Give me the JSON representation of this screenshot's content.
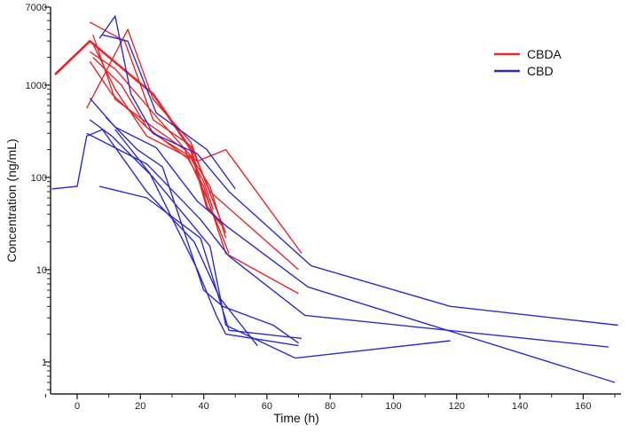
{
  "chart_data": {
    "type": "line",
    "xlabel": "Time (h)",
    "ylabel": "Concentration  (ng/mL)",
    "y_scale": "log",
    "xlim": [
      -12,
      172
    ],
    "ylim": [
      0.45,
      7000
    ],
    "x_ticks": [
      0,
      20,
      40,
      60,
      80,
      100,
      120,
      140,
      160
    ],
    "y_ticks": [
      {
        "value": 1,
        "label": "1"
      },
      {
        "value": 10,
        "label": "10"
      },
      {
        "value": 100,
        "label": "100"
      },
      {
        "value": 1000,
        "label": "1000"
      },
      {
        "value": 7000,
        "label": "7000"
      }
    ],
    "grid": false,
    "legend_position": "top-right",
    "legend": [
      {
        "label": "CBDA",
        "color": "#e8262a"
      },
      {
        "label": "CBD",
        "color": "#2b2bd0"
      }
    ],
    "colors": {
      "cbda": "#e8262a",
      "cbd": "#2b2bd0"
    },
    "series": [
      {
        "group": "cbda",
        "x": [
          -7,
          4,
          24,
          36,
          41,
          46
        ],
        "y": [
          1300,
          3000,
          800,
          200,
          48,
          30
        ]
      },
      {
        "group": "cbda",
        "x": [
          4,
          12,
          24,
          36,
          42,
          47
        ],
        "y": [
          2300,
          1500,
          500,
          170,
          80,
          22
        ]
      },
      {
        "group": "cbda",
        "x": [
          4,
          15,
          24,
          36,
          42,
          70
        ],
        "y": [
          4800,
          3000,
          420,
          220,
          70,
          10
        ]
      },
      {
        "group": "cbda",
        "x": [
          4,
          11,
          24,
          38,
          47,
          71
        ],
        "y": [
          1800,
          800,
          300,
          150,
          200,
          15
        ]
      },
      {
        "group": "cbda",
        "x": [
          3,
          16,
          24,
          36,
          40,
          47
        ],
        "y": [
          560,
          4000,
          700,
          240,
          100,
          25
        ]
      },
      {
        "group": "cbda",
        "x": [
          5,
          12,
          22,
          36,
          40,
          43
        ],
        "y": [
          2800,
          900,
          280,
          160,
          90,
          45
        ]
      },
      {
        "group": "cbda",
        "x": [
          5,
          12,
          24,
          34,
          41,
          48
        ],
        "y": [
          3500,
          700,
          350,
          200,
          60,
          15
        ]
      },
      {
        "group": "cbda",
        "x": [
          5,
          14,
          22,
          35,
          40,
          47,
          70
        ],
        "y": [
          2000,
          1000,
          350,
          160,
          80,
          15,
          5.5
        ]
      },
      {
        "group": "cbd",
        "x": [
          -8,
          0,
          3,
          8,
          22,
          37,
          45,
          57
        ],
        "y": [
          75,
          80,
          280,
          330,
          70,
          20,
          5,
          1.5
        ]
      },
      {
        "group": "cbd",
        "x": [
          4,
          11,
          24,
          42,
          47,
          69,
          118
        ],
        "y": [
          420,
          280,
          100,
          18,
          2.5,
          1.1,
          1.7
        ]
      },
      {
        "group": "cbd",
        "x": [
          4,
          12,
          25,
          38,
          47,
          73,
          170
        ],
        "y": [
          720,
          350,
          210,
          55,
          30,
          6.5,
          0.6
        ]
      },
      {
        "group": "cbd",
        "x": [
          12,
          23,
          38,
          44,
          47,
          70
        ],
        "y": [
          330,
          110,
          10,
          3.2,
          2.0,
          1.5
        ]
      },
      {
        "group": "cbd",
        "x": [
          7,
          22,
          39,
          48,
          71
        ],
        "y": [
          80,
          60,
          22,
          2.2,
          1.8
        ]
      },
      {
        "group": "cbd",
        "x": [
          9,
          19,
          27,
          40,
          46,
          62,
          70
        ],
        "y": [
          450,
          200,
          130,
          6,
          4,
          2.5,
          1.6
        ]
      },
      {
        "group": "cbd",
        "x": [
          8,
          16,
          25,
          41,
          50
        ],
        "y": [
          3500,
          3000,
          500,
          200,
          75
        ]
      },
      {
        "group": "cbd",
        "x": [
          7,
          12,
          17,
          24,
          38,
          48,
          74,
          118,
          171
        ],
        "y": [
          3200,
          5600,
          800,
          300,
          180,
          70,
          11,
          4,
          2.5
        ]
      },
      {
        "group": "cbd",
        "x": [
          3,
          22,
          39,
          48,
          72,
          168
        ],
        "y": [
          300,
          140,
          35,
          14,
          3.2,
          1.45
        ]
      }
    ]
  }
}
